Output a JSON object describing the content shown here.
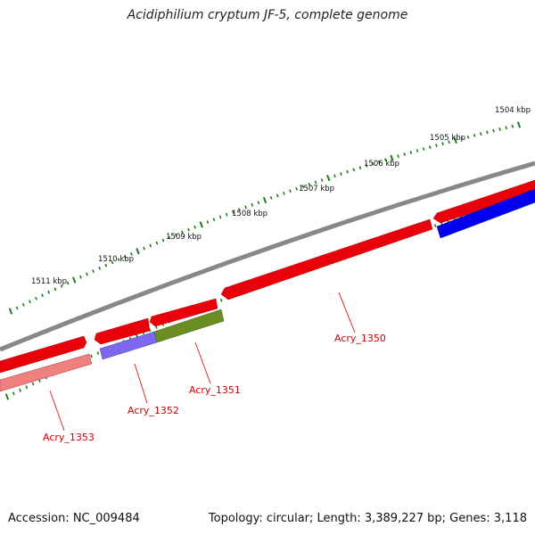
{
  "title": "Acidiphilium cryptum JF-5, complete genome",
  "footer": {
    "accession": "Accession: NC_009484",
    "summary": "Topology: circular; Length: 3,389,227 bp; Genes: 3,118"
  },
  "scale_ticks": [
    {
      "label": "1504 kbp"
    },
    {
      "label": "1505 kbp"
    },
    {
      "label": "1506 kbp"
    },
    {
      "label": "1507 kbp"
    },
    {
      "label": "1508 kbp"
    },
    {
      "label": "1509 kbp"
    },
    {
      "label": "1510 kbp"
    },
    {
      "label": "1511 kbp"
    }
  ],
  "genes": [
    {
      "label": "Acry_1350"
    },
    {
      "label": "Acry_1351"
    },
    {
      "label": "Acry_1352"
    },
    {
      "label": "Acry_1353"
    }
  ],
  "colors": {
    "backbone": "#808080",
    "forward_cds": "#e8000b",
    "reverse_cds_1350_neighbor": "#0000ee",
    "reverse_cds_1351": "#6b8e23",
    "reverse_cds_1352": "#7b68ee",
    "reverse_cds_1353": "#f08080",
    "tick": "#1e7b1e",
    "gene_label": "#d40000"
  }
}
